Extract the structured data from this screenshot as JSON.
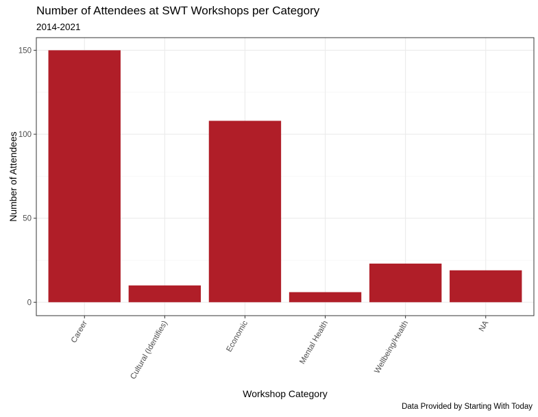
{
  "chart_data": {
    "type": "bar",
    "title": "Number of Attendees at SWT Workshops per Category",
    "subtitle": "2014-2021",
    "caption": "Data Provided by Starting With Today",
    "xlabel": "Workshop Category",
    "ylabel": "Number of Attendees",
    "categories": [
      "Career",
      "Cultural (Identifies)",
      "Economic",
      "Mental Health",
      "Wellbeing/Health",
      "NA"
    ],
    "values": [
      150,
      10,
      108,
      6,
      23,
      19
    ],
    "ylim": [
      -8,
      157.5
    ],
    "yticks": [
      0,
      50,
      100,
      150
    ],
    "grid": true,
    "bar_color": "#b01e28"
  }
}
